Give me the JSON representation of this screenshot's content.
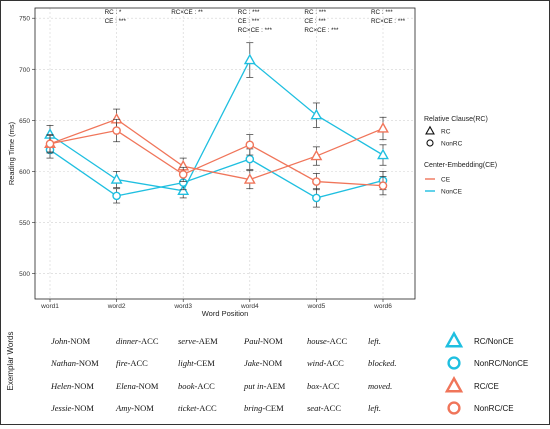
{
  "chart_data": {
    "type": "line",
    "ylabel": "Reading Time (ms)",
    "xlabel": "Word Position",
    "categories": [
      "word1",
      "word2",
      "word3",
      "word4",
      "word5",
      "word6"
    ],
    "ylim": [
      475,
      760
    ],
    "yticks": [
      500,
      550,
      600,
      650,
      700,
      750
    ],
    "grid": true,
    "series": [
      {
        "name": "RC/NonCE",
        "color": "#1fbfe0",
        "marker": "triangle",
        "values": [
          636,
          592,
          581,
          709,
          655,
          616
        ],
        "err": [
          9,
          8,
          7,
          17,
          12,
          10
        ]
      },
      {
        "name": "NonRC/NonCE",
        "color": "#1fbfe0",
        "marker": "circle",
        "values": [
          621,
          576,
          589,
          612,
          574,
          591
        ],
        "err": [
          8,
          7,
          7,
          10,
          9,
          9
        ]
      },
      {
        "name": "RC/CE",
        "color": "#f0755a",
        "marker": "triangle",
        "values": [
          627,
          651,
          605,
          592,
          615,
          642
        ],
        "err": [
          9,
          10,
          8,
          9,
          9,
          11
        ]
      },
      {
        "name": "NonRC/CE",
        "color": "#f0755a",
        "marker": "circle",
        "values": [
          627,
          640,
          597,
          626,
          590,
          586
        ],
        "err": [
          8,
          11,
          7,
          10,
          8,
          9
        ]
      }
    ],
    "annotations": [
      {
        "x": "word2",
        "lines": [
          "RC : *",
          "CE : ***"
        ]
      },
      {
        "x": "word3",
        "lines": [
          "RC×CE : **"
        ]
      },
      {
        "x": "word4",
        "lines": [
          "RC : ***",
          "CE : ***",
          "RC×CE : ***"
        ]
      },
      {
        "x": "word5",
        "lines": [
          "RC : ***",
          "CE : ***",
          "RC×CE : ***"
        ]
      },
      {
        "x": "word6",
        "lines": [
          "RC : ***",
          "RC×CE : ***"
        ]
      }
    ],
    "legends": [
      {
        "title": "Relative Clause(RC)",
        "items": [
          {
            "label": "RC",
            "marker": "triangle"
          },
          {
            "label": "NonRC",
            "marker": "circle"
          }
        ]
      },
      {
        "title": "Center-Embedding(CE)",
        "items": [
          {
            "label": "CE",
            "color": "#f0755a"
          },
          {
            "label": "NonCE",
            "color": "#1fbfe0"
          }
        ]
      }
    ]
  },
  "examples": {
    "label": "Exemplar Words",
    "rows": [
      {
        "words": [
          [
            "John",
            "-NOM"
          ],
          [
            "dinner",
            "-ACC"
          ],
          [
            "serve",
            "-AEM"
          ],
          [
            "Paul",
            "-NOM"
          ],
          [
            "house",
            "-ACC"
          ],
          [
            "left.",
            ""
          ]
        ],
        "legend": "RC/NonCE",
        "color": "#1fbfe0",
        "marker": "triangle"
      },
      {
        "words": [
          [
            "Nathan",
            "-NOM"
          ],
          [
            "fire",
            "-ACC"
          ],
          [
            "light",
            "-CEM"
          ],
          [
            "Jake",
            "-NOM"
          ],
          [
            "wind",
            "-ACC"
          ],
          [
            "blocked.",
            ""
          ]
        ],
        "legend": "NonRC/NonCE",
        "color": "#1fbfe0",
        "marker": "circle"
      },
      {
        "words": [
          [
            "Helen",
            "-NOM"
          ],
          [
            "Elena",
            "-NOM"
          ],
          [
            "book",
            "-ACC"
          ],
          [
            "put in",
            "-AEM"
          ],
          [
            "box",
            "-ACC"
          ],
          [
            "moved.",
            ""
          ]
        ],
        "legend": "RC/CE",
        "color": "#f0755a",
        "marker": "triangle"
      },
      {
        "words": [
          [
            "Jessie",
            "-NOM"
          ],
          [
            "Amy",
            "-NOM"
          ],
          [
            "ticket",
            "-ACC"
          ],
          [
            "bring",
            "-CEM"
          ],
          [
            "seat",
            "-ACC"
          ],
          [
            "left.",
            ""
          ]
        ],
        "legend": "NonRC/CE",
        "color": "#f0755a",
        "marker": "circle"
      }
    ]
  }
}
